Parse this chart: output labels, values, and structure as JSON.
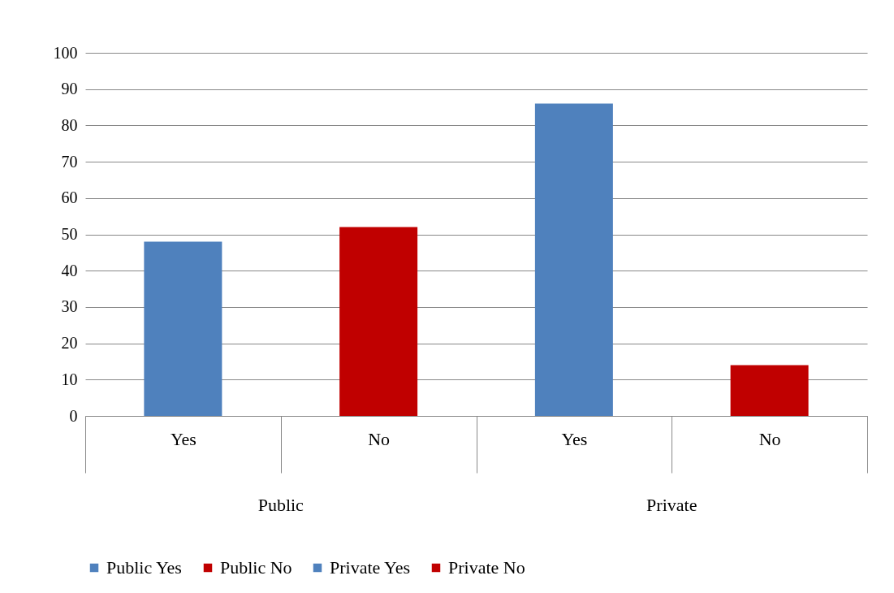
{
  "chart_data": {
    "type": "bar",
    "categories": [
      "Yes",
      "No",
      "Yes",
      "No"
    ],
    "series": [
      {
        "name": "Public Yes",
        "color": "#4f81bd",
        "values": [
          48,
          null,
          null,
          null
        ]
      },
      {
        "name": "Public No",
        "color": "#c00000",
        "values": [
          null,
          52,
          null,
          null
        ]
      },
      {
        "name": "Private Yes",
        "color": "#4f81bd",
        "values": [
          null,
          null,
          86,
          null
        ]
      },
      {
        "name": "Private No",
        "color": "#c00000",
        "values": [
          null,
          null,
          null,
          14
        ]
      }
    ],
    "annotations": [
      "Public",
      "Private"
    ],
    "ylim": [
      0,
      100
    ],
    "yticks": [
      0,
      10,
      20,
      30,
      40,
      50,
      60,
      70,
      80,
      90,
      100
    ],
    "grid": "y",
    "legend": "bottom"
  }
}
